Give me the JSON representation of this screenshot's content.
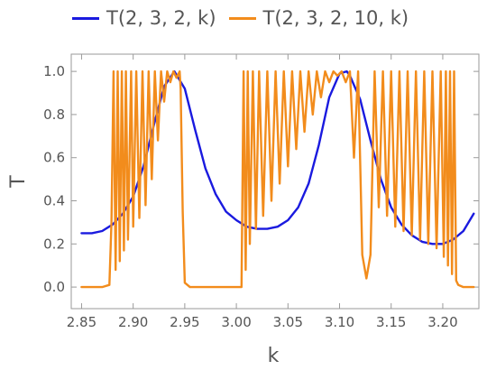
{
  "chart_data": {
    "type": "line",
    "title": "",
    "xlabel": "k",
    "ylabel": "T",
    "xlim": [
      2.84,
      3.235
    ],
    "ylim": [
      -0.1,
      1.08
    ],
    "xticks": [
      "2.85",
      "2.90",
      "2.95",
      "3.00",
      "3.05",
      "3.10",
      "3.15",
      "3.20"
    ],
    "yticks": [
      "0.0",
      "0.2",
      "0.4",
      "0.6",
      "0.8",
      "1.0"
    ],
    "grid": false,
    "legend_position": "top",
    "series": [
      {
        "name": "T(2, 3, 2, k)",
        "color": "#1a1adf",
        "x": [
          2.85,
          2.86,
          2.87,
          2.88,
          2.89,
          2.9,
          2.91,
          2.92,
          2.93,
          2.94,
          2.95,
          2.96,
          2.97,
          2.98,
          2.99,
          3.0,
          3.01,
          3.02,
          3.03,
          3.04,
          3.05,
          3.06,
          3.07,
          3.08,
          3.09,
          3.1,
          3.107,
          3.11,
          3.12,
          3.13,
          3.14,
          3.15,
          3.16,
          3.17,
          3.18,
          3.19,
          3.2,
          3.21,
          3.22,
          3.23
        ],
        "y": [
          0.25,
          0.25,
          0.26,
          0.29,
          0.34,
          0.42,
          0.56,
          0.75,
          0.93,
          1.0,
          0.92,
          0.73,
          0.55,
          0.43,
          0.35,
          0.31,
          0.28,
          0.27,
          0.27,
          0.28,
          0.31,
          0.37,
          0.48,
          0.66,
          0.88,
          0.99,
          1.0,
          0.98,
          0.87,
          0.68,
          0.5,
          0.37,
          0.29,
          0.24,
          0.21,
          0.2,
          0.2,
          0.22,
          0.26,
          0.34
        ]
      },
      {
        "name": "T(2, 3, 2, 10, k)",
        "color": "#f28c1c",
        "x": [
          2.85,
          2.87,
          2.877,
          2.879,
          2.881,
          2.883,
          2.885,
          2.887,
          2.889,
          2.891,
          2.893,
          2.895,
          2.898,
          2.9,
          2.903,
          2.906,
          2.909,
          2.912,
          2.915,
          2.918,
          2.921,
          2.924,
          2.927,
          2.93,
          2.933,
          2.936,
          2.939,
          2.942,
          2.945,
          2.946,
          2.948,
          2.95,
          2.955,
          2.96,
          2.975,
          3.005,
          3.007,
          3.009,
          3.011,
          3.013,
          3.016,
          3.019,
          3.022,
          3.026,
          3.03,
          3.034,
          3.038,
          3.042,
          3.046,
          3.05,
          3.054,
          3.058,
          3.062,
          3.066,
          3.07,
          3.074,
          3.078,
          3.082,
          3.086,
          3.09,
          3.094,
          3.098,
          3.102,
          3.106,
          3.11,
          3.114,
          3.118,
          3.122,
          3.126,
          3.13,
          3.134,
          3.138,
          3.142,
          3.146,
          3.15,
          3.154,
          3.158,
          3.162,
          3.166,
          3.17,
          3.174,
          3.178,
          3.182,
          3.186,
          3.19,
          3.194,
          3.198,
          3.201,
          3.203,
          3.205,
          3.207,
          3.209,
          3.211,
          3.213,
          3.215,
          3.22,
          3.23
        ],
        "y": [
          0.0,
          0.0,
          0.01,
          0.3,
          1.0,
          0.08,
          1.0,
          0.12,
          1.0,
          0.17,
          1.0,
          0.22,
          1.0,
          0.28,
          1.0,
          0.32,
          1.0,
          0.38,
          1.0,
          0.5,
          1.0,
          0.68,
          1.0,
          0.86,
          1.0,
          0.95,
          1.0,
          0.97,
          1.0,
          0.92,
          0.35,
          0.02,
          0.0,
          0.0,
          0.0,
          0.0,
          1.0,
          0.08,
          1.0,
          0.2,
          1.0,
          0.27,
          1.0,
          0.33,
          1.0,
          0.4,
          1.0,
          0.48,
          1.0,
          0.56,
          1.0,
          0.64,
          1.0,
          0.72,
          1.0,
          0.8,
          1.0,
          0.88,
          1.0,
          0.95,
          1.0,
          0.98,
          1.0,
          0.95,
          1.0,
          0.6,
          1.0,
          0.15,
          0.04,
          0.15,
          1.0,
          0.37,
          1.0,
          0.33,
          1.0,
          0.28,
          1.0,
          0.26,
          1.0,
          0.24,
          1.0,
          0.22,
          1.0,
          0.2,
          1.0,
          0.18,
          1.0,
          0.14,
          1.0,
          0.1,
          1.0,
          0.06,
          1.0,
          0.03,
          0.01,
          0.0,
          0.0
        ]
      }
    ]
  }
}
